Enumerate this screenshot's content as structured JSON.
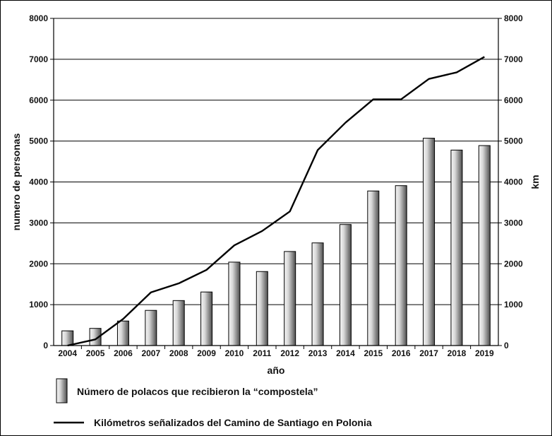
{
  "chart_data": {
    "type": "bar",
    "categories": [
      "2004",
      "2005",
      "2006",
      "2007",
      "2008",
      "2009",
      "2010",
      "2011",
      "2012",
      "2013",
      "2014",
      "2015",
      "2016",
      "2017",
      "2018",
      "2019"
    ],
    "series": [
      {
        "name": "Número de polacos que recibieron la “compostela”",
        "type": "bar",
        "axis": "left",
        "values": [
          360,
          420,
          600,
          860,
          1100,
          1310,
          2040,
          1810,
          2300,
          2510,
          2960,
          3780,
          3910,
          5070,
          4780,
          4890
        ]
      },
      {
        "name": "Kilómetros señalizados del Camino de Santiago en Polonia",
        "type": "line",
        "axis": "right",
        "values": [
          0,
          150,
          650,
          1300,
          1520,
          1850,
          2450,
          2800,
          3280,
          4780,
          5450,
          6020,
          6020,
          6520,
          6680,
          7060
        ]
      }
    ],
    "xlabel": "año",
    "ylabel": "numero de personas",
    "y2label": "km",
    "ylim": [
      0,
      8000
    ],
    "y2lim": [
      0,
      8000
    ],
    "yticks": [
      0,
      1000,
      2000,
      3000,
      4000,
      5000,
      6000,
      7000,
      8000
    ],
    "grid": true,
    "legend_position": "bottom",
    "colors": {
      "bar_light": "#f2f2f2",
      "bar_dark": "#5a5a5a",
      "line": "#000000",
      "grid": "#000000"
    }
  }
}
